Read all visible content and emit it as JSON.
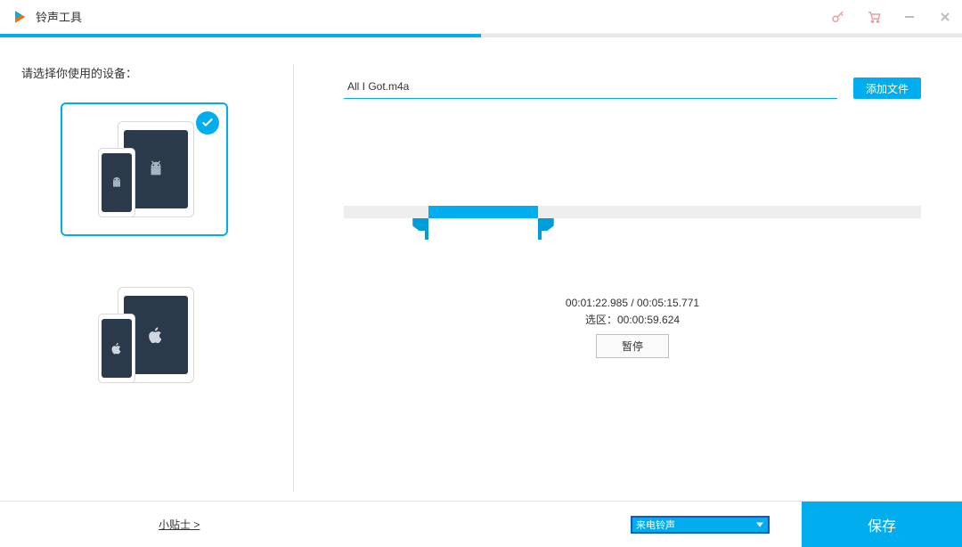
{
  "window": {
    "title": "铃声工具"
  },
  "progress": {
    "percent": 50,
    "strip_bg": "#e8e8e8",
    "fill_color": "#00aeef"
  },
  "left": {
    "prompt": "请选择你使用的设备：",
    "android_selected": true
  },
  "editor": {
    "filename": "All I Got.m4a",
    "add_file_label": "添加文件",
    "time_line": "00:01:22.985 / 00:05:15.771",
    "selection_prefix": "选区：",
    "selection_time": "00:00:59.624",
    "pause_label": "暂停",
    "range": {
      "start_pct": 14.7,
      "end_pct": 33.6
    }
  },
  "footer": {
    "tips_label": "小贴士 >",
    "ringtone_type": "来电铃声",
    "save_label": "保存"
  },
  "colors": {
    "accent": "#00aeef",
    "handle": "#009ddb",
    "icon_muted": "#e7a0a0",
    "win_icon": "#bdbdbd",
    "device_dark": "#2a3a4a"
  }
}
